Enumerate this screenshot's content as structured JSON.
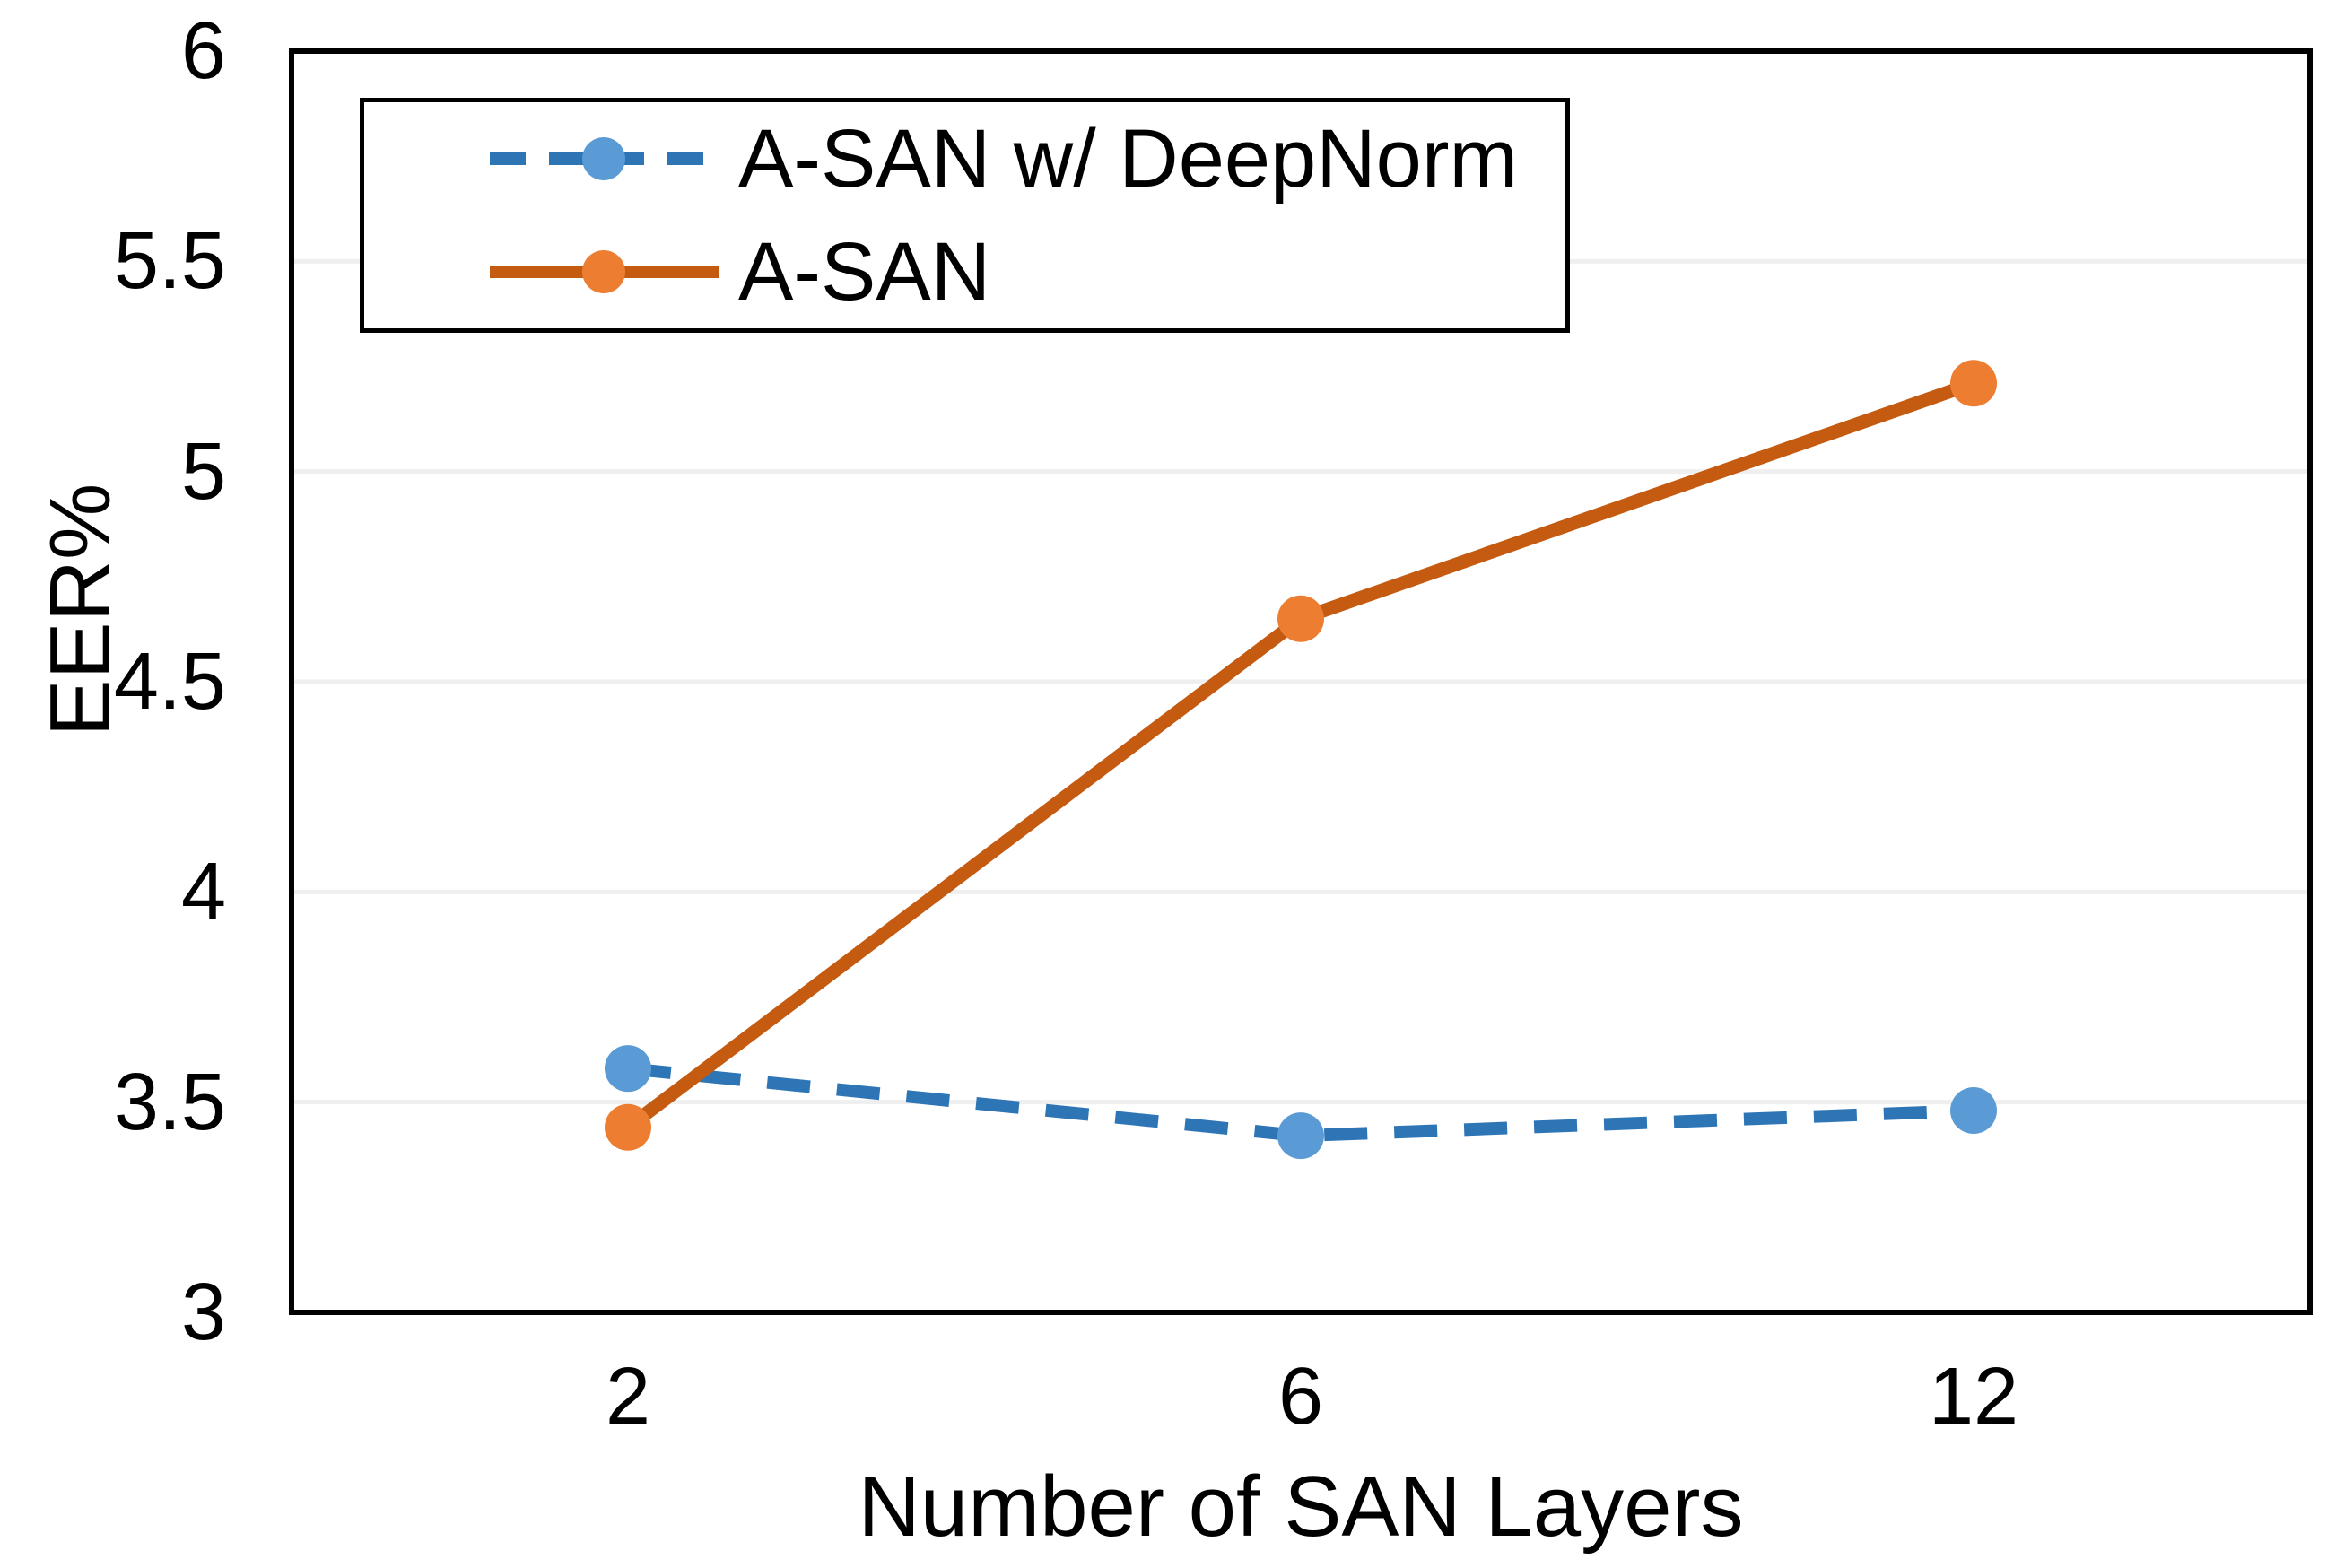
{
  "chart_data": {
    "type": "line",
    "title": "",
    "xlabel": "Number of SAN Layers",
    "ylabel": "EER%",
    "categories": [
      "2",
      "6",
      "12"
    ],
    "y_ticks": [
      3,
      3.5,
      4,
      4.5,
      5,
      5.5,
      6
    ],
    "ylim": [
      3,
      6
    ],
    "grid": "horizontal",
    "legend_position": "top-left-inside-boxed",
    "series": [
      {
        "name": "A-SAN w/ DeepNorm",
        "values": [
          3.58,
          3.42,
          3.48
        ],
        "line_style": "dashed",
        "line_color": "#2E75B6",
        "marker_color": "#5B9BD5"
      },
      {
        "name": "A-SAN",
        "values": [
          3.44,
          4.65,
          5.21
        ],
        "line_style": "solid",
        "line_color": "#C55A11",
        "marker_color": "#ED7D31"
      }
    ],
    "colors": {
      "background": "#FFFFFF",
      "axis_border": "#000000",
      "gridline": "#EFEFEF",
      "text": "#000000"
    }
  }
}
